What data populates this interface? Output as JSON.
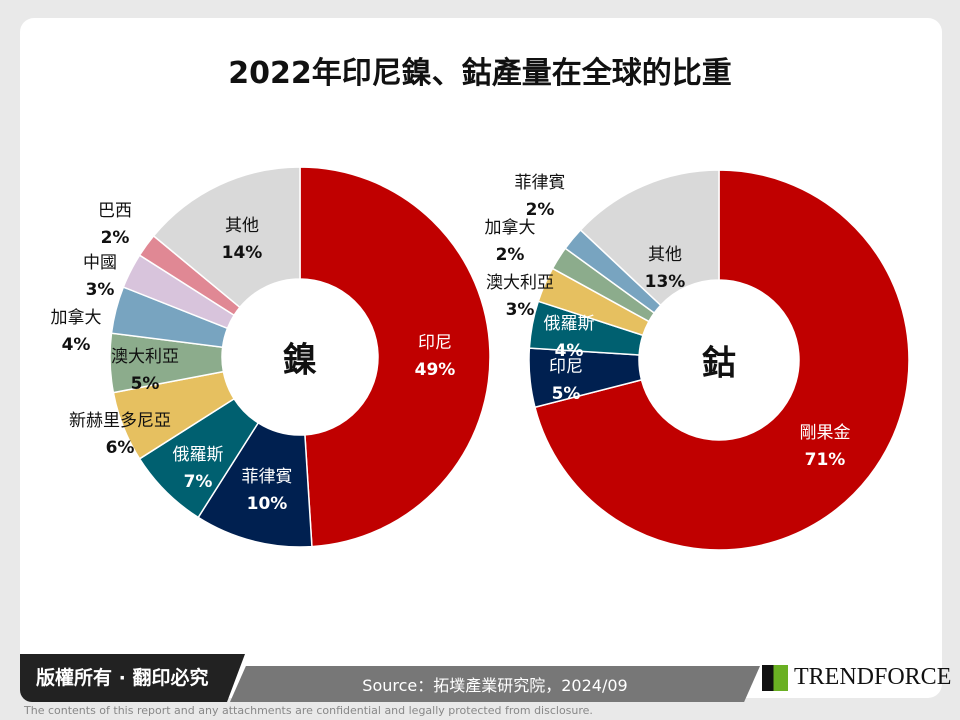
{
  "title": "2022年印尼鎳、鈷產量在全球的比重",
  "chart_data": [
    {
      "type": "pie",
      "center_label": "鎳",
      "donut": true,
      "categories": [
        "印尼",
        "菲律賓",
        "俄羅斯",
        "新赫里多尼亞",
        "澳大利亞",
        "加拿大",
        "中國",
        "巴西",
        "其他"
      ],
      "values": [
        49,
        10,
        7,
        6,
        5,
        4,
        3,
        2,
        14
      ],
      "labels": [
        "49%",
        "10%",
        "7%",
        "6%",
        "5%",
        "4%",
        "3%",
        "2%",
        "14%"
      ],
      "colors": [
        "#C00000",
        "#002050",
        "#006070",
        "#E6C060",
        "#8CAC8C",
        "#78A4C0",
        "#D8C4DC",
        "#E08894",
        "#D9D9D9"
      ]
    },
    {
      "type": "pie",
      "center_label": "鈷",
      "donut": true,
      "categories": [
        "剛果金",
        "印尼",
        "俄羅斯",
        "澳大利亞",
        "加拿大",
        "菲律賓",
        "其他"
      ],
      "values": [
        71,
        5,
        4,
        3,
        2,
        2,
        13
      ],
      "labels": [
        "71%",
        "5%",
        "4%",
        "3%",
        "2%",
        "2%",
        "13%"
      ],
      "colors": [
        "#C00000",
        "#002050",
        "#006070",
        "#E6C060",
        "#8CAC8C",
        "#78A4C0",
        "#D9D9D9"
      ]
    }
  ],
  "footer": {
    "copyright": "版權所有 · 翻印必究",
    "source": "Source：拓墣產業研究院，2024/09",
    "logo": "TRENDFORCE",
    "disclaimer": "The contents of this report and any attachments are confidential and legally protected from disclosure."
  }
}
